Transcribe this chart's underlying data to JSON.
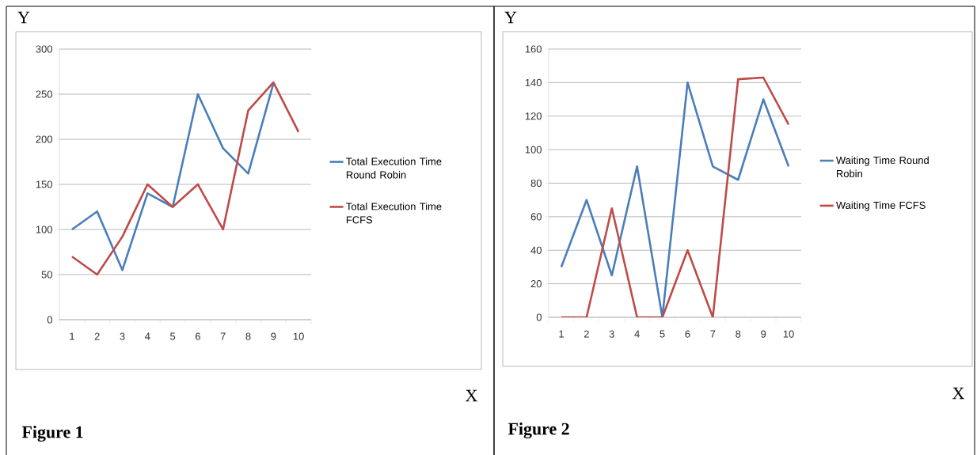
{
  "chart_data": [
    {
      "type": "line",
      "ylabel": "Y",
      "annotations": [
        "X",
        "Figure 1"
      ],
      "categories": [
        "1",
        "2",
        "3",
        "4",
        "5",
        "6",
        "7",
        "8",
        "9",
        "10"
      ],
      "series": [
        {
          "name": "Total Execution Time Round Robin",
          "color": "#4a7ebb",
          "values": [
            100,
            120,
            55,
            140,
            125,
            250,
            190,
            162,
            262,
            null
          ]
        },
        {
          "name": "Total Execution Time FCFS",
          "color": "#be4b48",
          "values": [
            70,
            50,
            92,
            150,
            125,
            150,
            100,
            232,
            263,
            208
          ]
        }
      ],
      "ylim": [
        0,
        300
      ],
      "yticks": [
        0,
        50,
        100,
        150,
        200,
        250,
        300
      ],
      "grid": "y",
      "legend": "right"
    },
    {
      "type": "line",
      "ylabel": "Y",
      "annotations": [
        "X",
        "Figure 2"
      ],
      "categories": [
        "1",
        "2",
        "3",
        "4",
        "5",
        "6",
        "7",
        "8",
        "9",
        "10"
      ],
      "series": [
        {
          "name": "Waiting Time Round Robin",
          "color": "#4a7ebb",
          "values": [
            30,
            70,
            25,
            90,
            0,
            140,
            90,
            82,
            130,
            90
          ]
        },
        {
          "name": "Waiting Time FCFS",
          "color": "#be4b48",
          "values": [
            0,
            0,
            65,
            0,
            0,
            40,
            0,
            142,
            143,
            115
          ]
        }
      ],
      "ylim": [
        0,
        160
      ],
      "yticks": [
        0,
        20,
        40,
        60,
        80,
        100,
        120,
        140,
        160
      ],
      "grid": "y",
      "legend": "right"
    }
  ]
}
